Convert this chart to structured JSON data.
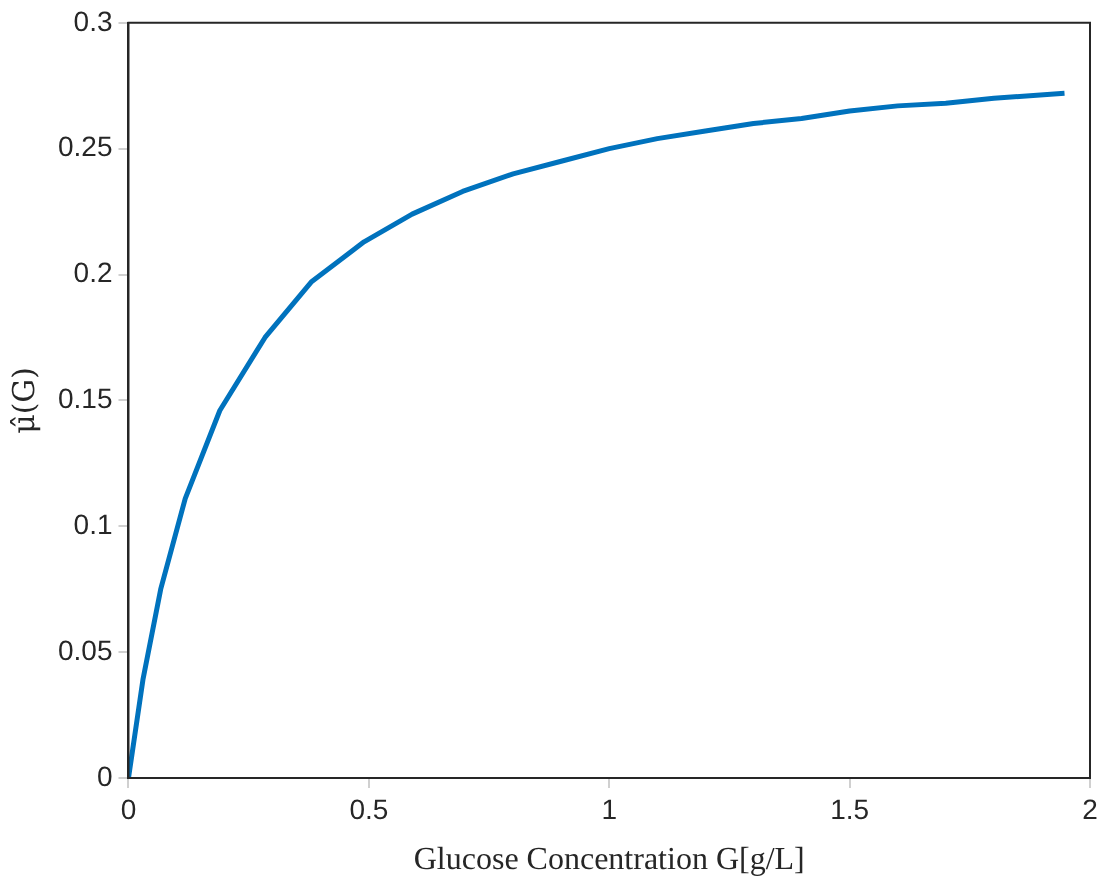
{
  "chart_data": {
    "type": "line",
    "xlabel": "Glucose Concentration G[g/L]",
    "ylabel": "μ̂(G)",
    "x": [
      0,
      0.03,
      0.067,
      0.118,
      0.19,
      0.284,
      0.38,
      0.49,
      0.59,
      0.695,
      0.8,
      0.9,
      1.0,
      1.1,
      1.2,
      1.3,
      1.4,
      1.5,
      1.6,
      1.7,
      1.8,
      1.947
    ],
    "series": [
      {
        "color": "#0072bd",
        "values": [
          0,
          0.039,
          0.075,
          0.111,
          0.146,
          0.175,
          0.197,
          0.213,
          0.224,
          0.233,
          0.24,
          0.245,
          0.25,
          0.254,
          0.257,
          0.26,
          0.262,
          0.265,
          0.267,
          0.268,
          0.27,
          0.272
        ]
      }
    ],
    "xlim": [
      0,
      2
    ],
    "xticks": [
      0,
      0.5,
      1,
      1.5,
      2
    ],
    "ylim": [
      0,
      0.3
    ],
    "yticks": [
      0,
      0.05,
      0.1,
      0.15,
      0.2,
      0.25,
      0.3
    ],
    "grid": false,
    "legend": false,
    "marker": "none",
    "line_style": "solid"
  }
}
